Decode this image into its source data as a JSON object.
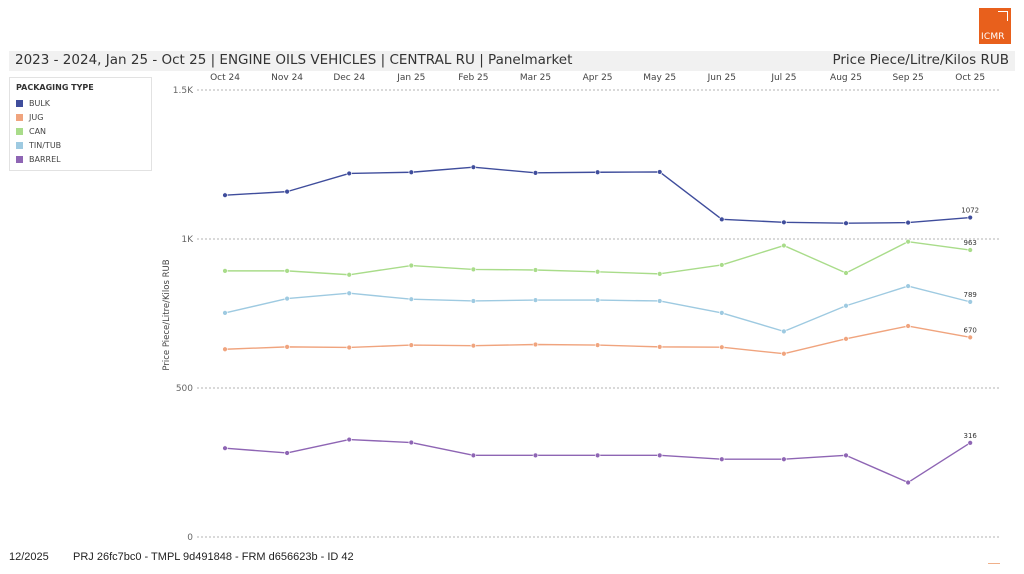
{
  "logo": {
    "text": "ICMR"
  },
  "header": {
    "title": "2023 - 2024, Jan 25 - Oct 25 | ENGINE OILS VEHICLES | CENTRAL RU | Panelmarket",
    "unit": "Price Piece/Litre/Kilos RUB"
  },
  "legend": {
    "title": "PACKAGING TYPE"
  },
  "footer": {
    "date": "12/2025",
    "id": "PRJ 26fc7bc0 - TMPL 9d491848 - FRM d656623b - ID 42"
  },
  "chart_data": {
    "type": "line",
    "categories": [
      "Oct 24",
      "Nov 24",
      "Dec 24",
      "Jan 25",
      "Feb 25",
      "Mar 25",
      "Apr 25",
      "May 25",
      "Jun 25",
      "Jul 25",
      "Aug 25",
      "Sep 25",
      "Oct 25"
    ],
    "ylabel": "Price Piece/Litre/Kilos RUB",
    "ylim": [
      0,
      1500
    ],
    "yticks": [
      {
        "value": 0,
        "label": "0"
      },
      {
        "value": 500,
        "label": "500"
      },
      {
        "value": 1000,
        "label": "1K"
      },
      {
        "value": 1500,
        "label": "1.5K"
      }
    ],
    "grid": true,
    "x_axis_position": "top",
    "legend_position": "top-left",
    "series": [
      {
        "name": "BULK",
        "color": "#3f4d9c",
        "values": [
          1147,
          1159,
          1220,
          1224,
          1241,
          1222,
          1224,
          1225,
          1066,
          1056,
          1053,
          1055,
          1072
        ],
        "last_label": "1072"
      },
      {
        "name": "JUG",
        "color": "#f0a47e",
        "values": [
          630,
          638,
          636,
          644,
          642,
          646,
          644,
          638,
          637,
          615,
          665,
          708,
          670
        ],
        "last_label": "670"
      },
      {
        "name": "CAN",
        "color": "#a9dc8a",
        "values": [
          893,
          893,
          880,
          911,
          898,
          896,
          890,
          883,
          913,
          978,
          886,
          991,
          963
        ],
        "last_label": "963"
      },
      {
        "name": "TIN/TUB",
        "color": "#9ecae1",
        "values": [
          752,
          800,
          818,
          798,
          792,
          795,
          795,
          792,
          752,
          690,
          776,
          842,
          789
        ],
        "last_label": "789"
      },
      {
        "name": "BARREL",
        "color": "#8e65b4",
        "values": [
          298,
          282,
          327,
          317,
          274,
          274,
          274,
          274,
          261,
          261,
          274,
          183,
          316
        ],
        "last_label": "316"
      }
    ]
  }
}
